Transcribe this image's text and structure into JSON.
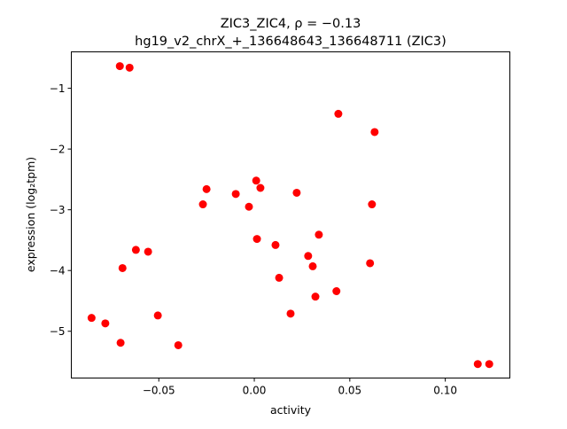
{
  "chart_data": {
    "type": "scatter",
    "title_line1": "ZIC3_ZIC4, ρ = −0.13",
    "title_line2": "hg19_v2_chrX_+_136648643_136648711 (ZIC3)",
    "xlabel": "activity",
    "ylabel": "expression (log₂tpm)",
    "xlim": [
      -0.0958,
      0.1338
    ],
    "ylim": [
      -5.77,
      -0.4
    ],
    "xticks": [
      -0.05,
      0.0,
      0.05,
      0.1
    ],
    "xtick_labels": [
      "−0.05",
      "0.00",
      "0.05",
      "0.10"
    ],
    "yticks": [
      -1,
      -2,
      -3,
      -4,
      -5
    ],
    "ytick_labels": [
      "−1",
      "−2",
      "−3",
      "−4",
      "−5"
    ],
    "grid": false,
    "marker_color": "#ff0000",
    "points": [
      [
        -0.0704,
        -0.635
      ],
      [
        -0.0653,
        -0.66
      ],
      [
        0.044,
        -1.42
      ],
      [
        0.063,
        -1.72
      ],
      [
        -0.025,
        -2.66
      ],
      [
        0.001,
        -2.52
      ],
      [
        0.0032,
        -2.64
      ],
      [
        -0.0097,
        -2.74
      ],
      [
        -0.0269,
        -2.91
      ],
      [
        -0.0028,
        -2.95
      ],
      [
        0.0222,
        -2.72
      ],
      [
        0.0616,
        -2.91
      ],
      [
        0.0014,
        -3.48
      ],
      [
        0.0338,
        -3.41
      ],
      [
        -0.062,
        -3.66
      ],
      [
        -0.0556,
        -3.69
      ],
      [
        0.0111,
        -3.58
      ],
      [
        0.0282,
        -3.76
      ],
      [
        -0.069,
        -3.96
      ],
      [
        0.0306,
        -3.93
      ],
      [
        0.0606,
        -3.88
      ],
      [
        0.013,
        -4.12
      ],
      [
        0.032,
        -4.43
      ],
      [
        0.043,
        -4.34
      ],
      [
        0.019,
        -4.71
      ],
      [
        -0.0852,
        -4.78
      ],
      [
        -0.078,
        -4.87
      ],
      [
        -0.0505,
        -4.74
      ],
      [
        -0.07,
        -5.19
      ],
      [
        -0.0398,
        -5.23
      ],
      [
        0.117,
        -5.54
      ],
      [
        0.123,
        -5.54
      ]
    ]
  }
}
